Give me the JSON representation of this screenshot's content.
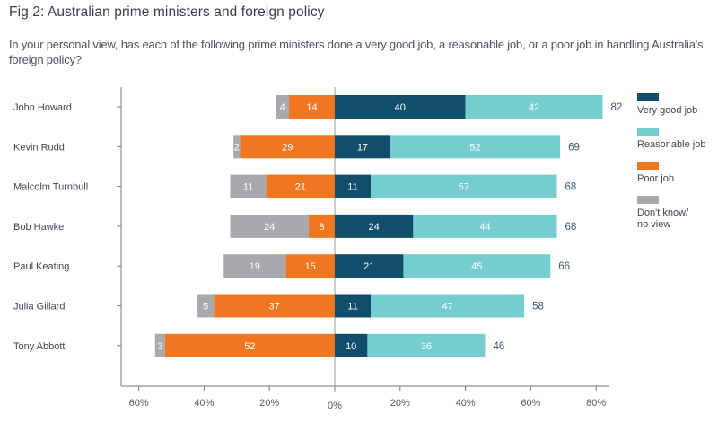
{
  "chart_data": {
    "type": "bar",
    "orientation": "horizontal",
    "stacked": "diverging",
    "title": "Fig 2: Australian prime ministers and foreign policy",
    "subtitle": "In your personal view, has each of the following prime ministers done a very good job, a reasonable job, or a poor job in handling Australia's foreign policy?",
    "xlabel": "",
    "ylabel": "",
    "xlim": [
      -60,
      80
    ],
    "x_ticks": [
      -60,
      -40,
      -20,
      0,
      20,
      40,
      60,
      80
    ],
    "x_tick_labels": [
      "60%",
      "40%",
      "20%",
      "0%",
      "20%",
      "40%",
      "60%",
      "80%"
    ],
    "grid": false,
    "legend_position": "right",
    "categories": [
      "John Howard",
      "Kevin Rudd",
      "Malcolm Turnbull",
      "Bob Hawke",
      "Paul Keating",
      "Julia Gillard",
      "Tony Abbott"
    ],
    "series": [
      {
        "name": "Very good job",
        "side": "positive",
        "color": "#114e6b",
        "values": [
          40,
          17,
          11,
          24,
          21,
          11,
          10
        ]
      },
      {
        "name": "Reasonable job",
        "side": "positive",
        "color": "#76cdd0",
        "values": [
          42,
          52,
          57,
          44,
          45,
          47,
          36
        ]
      },
      {
        "name": "Poor job",
        "side": "negative",
        "color": "#f07622",
        "values": [
          14,
          29,
          21,
          8,
          15,
          37,
          52
        ]
      },
      {
        "name": "Don't know/ no view",
        "side": "negative",
        "color": "#a7a9ac",
        "values": [
          4,
          2,
          11,
          24,
          19,
          5,
          3
        ]
      }
    ],
    "totals": [
      82,
      69,
      68,
      68,
      66,
      58,
      46
    ]
  },
  "legend": [
    {
      "label": "Very good job",
      "color": "#114e6b"
    },
    {
      "label": "Reasonable job",
      "color": "#76cdd0"
    },
    {
      "label": "Poor job",
      "color": "#f07622"
    },
    {
      "label": "Don't know/ no view",
      "color": "#a7a9ac"
    }
  ]
}
